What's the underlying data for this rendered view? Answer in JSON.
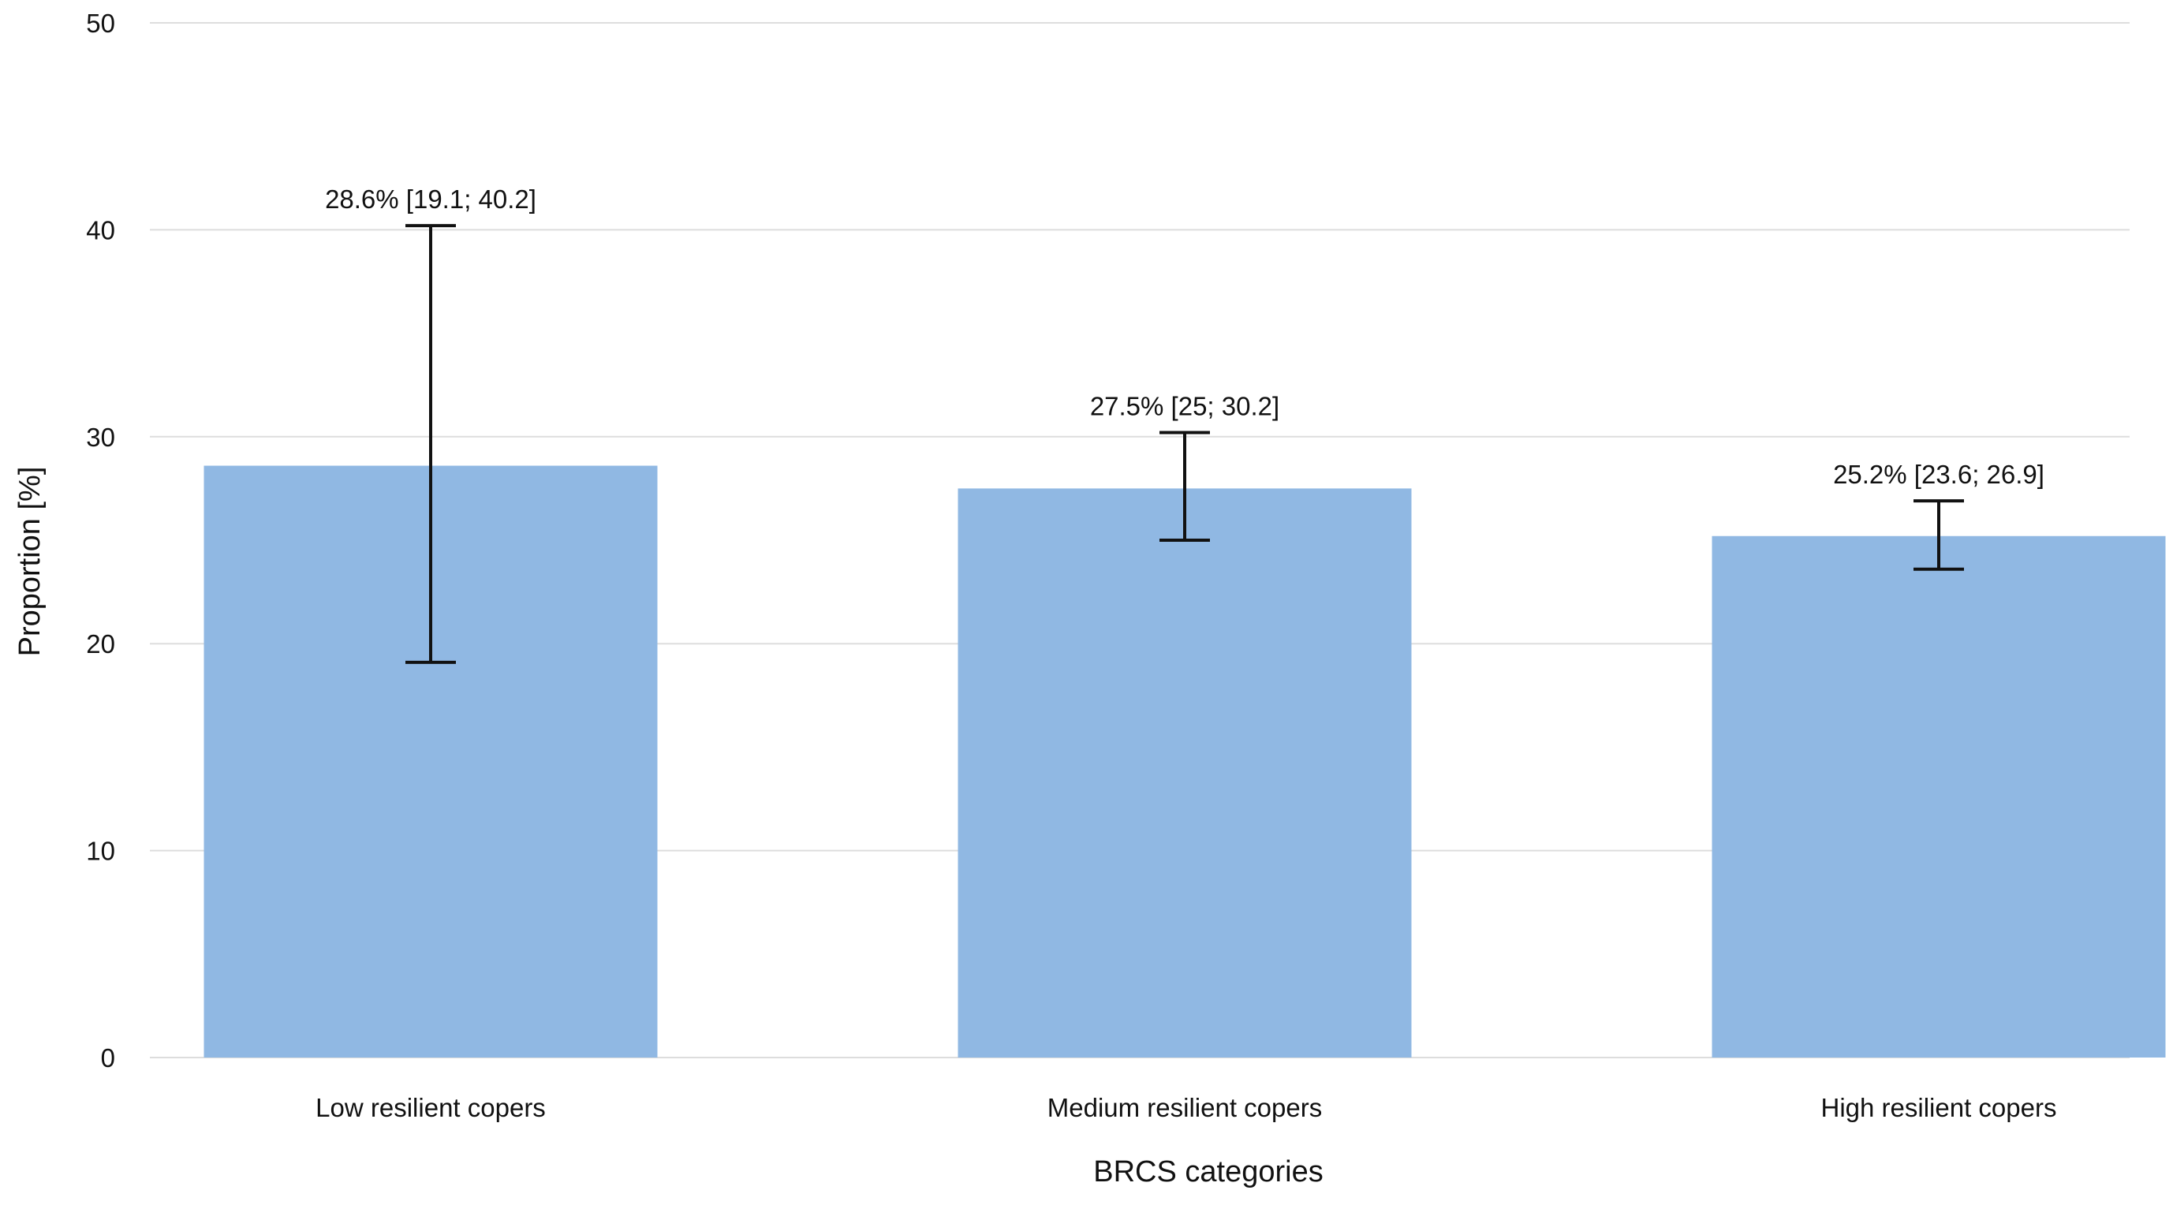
{
  "chart_data": {
    "type": "bar",
    "title": "",
    "xlabel": "BRCS categories",
    "ylabel": "Proportion [%]",
    "ylim": [
      0,
      50
    ],
    "yticks": [
      0,
      10,
      20,
      30,
      40,
      50
    ],
    "grid": true,
    "legend": "none",
    "categories": [
      "Low resilient copers",
      "Medium resilient copers",
      "High resilient copers"
    ],
    "series": [
      {
        "values": [
          28.6,
          27.5,
          25.2
        ],
        "ci_lower": [
          19.1,
          25,
          23.6
        ],
        "ci_upper": [
          40.2,
          30.2,
          26.9
        ],
        "labels": [
          "28.6% [19.1; 40.2]",
          "27.5% [25; 30.2]",
          "25.2% [23.6; 26.9]"
        ]
      }
    ],
    "colors": {
      "bar": "#90b8e3",
      "grid": "#dddddd",
      "error_bar": "#111111"
    }
  }
}
